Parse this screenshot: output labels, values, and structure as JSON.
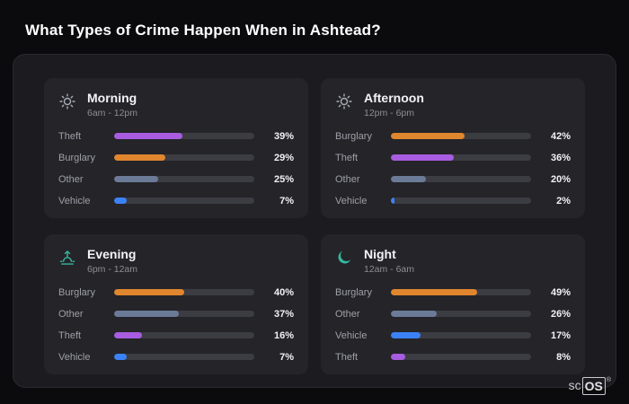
{
  "page": {
    "title": "What Types of Crime Happen When in Ashtead?"
  },
  "brand": {
    "prefix": "sc",
    "suffix": "OS",
    "reg": "®"
  },
  "colors": {
    "theft": "#a85ce0",
    "burglary": "#e0862e",
    "other": "#6b7b97",
    "vehicle": "#3b82f6",
    "icon_gray": "#a9aeb6",
    "icon_teal": "#35b8a0",
    "panel_bg": "#1c1c20",
    "card_bg": "#242429",
    "track_bg": "#3c3c43"
  },
  "chart_data": {
    "type": "bar",
    "title": "What Types of Crime Happen When in Ashtead?",
    "unit": "percent",
    "legend_position": "none",
    "grid": false,
    "groups": [
      {
        "name": "Morning",
        "time": "6am - 12pm",
        "icon": "morning-sun-icon",
        "icon_type": "sun",
        "icon_color": "#a9aeb6",
        "bars": [
          {
            "label": "Theft",
            "value": 39,
            "pct": "39%",
            "color": "#a85ce0"
          },
          {
            "label": "Burglary",
            "value": 29,
            "pct": "29%",
            "color": "#e0862e"
          },
          {
            "label": "Other",
            "value": 25,
            "pct": "25%",
            "color": "#6b7b97"
          },
          {
            "label": "Vehicle",
            "value": 7,
            "pct": "7%",
            "color": "#3b82f6"
          }
        ]
      },
      {
        "name": "Afternoon",
        "time": "12pm - 6pm",
        "icon": "afternoon-sun-icon",
        "icon_type": "sun",
        "icon_color": "#a9aeb6",
        "bars": [
          {
            "label": "Burglary",
            "value": 42,
            "pct": "42%",
            "color": "#e0862e"
          },
          {
            "label": "Theft",
            "value": 36,
            "pct": "36%",
            "color": "#a85ce0"
          },
          {
            "label": "Other",
            "value": 20,
            "pct": "20%",
            "color": "#6b7b97"
          },
          {
            "label": "Vehicle",
            "value": 2,
            "pct": "2%",
            "color": "#3b82f6"
          }
        ]
      },
      {
        "name": "Evening",
        "time": "6pm - 12am",
        "icon": "evening-sunset-icon",
        "icon_type": "sunrise",
        "icon_color": "#35b8a0",
        "bars": [
          {
            "label": "Burglary",
            "value": 40,
            "pct": "40%",
            "color": "#e0862e"
          },
          {
            "label": "Other",
            "value": 37,
            "pct": "37%",
            "color": "#6b7b97"
          },
          {
            "label": "Theft",
            "value": 16,
            "pct": "16%",
            "color": "#a85ce0"
          },
          {
            "label": "Vehicle",
            "value": 7,
            "pct": "7%",
            "color": "#3b82f6"
          }
        ]
      },
      {
        "name": "Night",
        "time": "12am - 6am",
        "icon": "night-moon-icon",
        "icon_type": "moon",
        "icon_color": "#35b8a0",
        "bars": [
          {
            "label": "Burglary",
            "value": 49,
            "pct": "49%",
            "color": "#e0862e"
          },
          {
            "label": "Other",
            "value": 26,
            "pct": "26%",
            "color": "#6b7b97"
          },
          {
            "label": "Vehicle",
            "value": 17,
            "pct": "17%",
            "color": "#3b82f6"
          },
          {
            "label": "Theft",
            "value": 8,
            "pct": "8%",
            "color": "#a85ce0"
          }
        ]
      }
    ]
  }
}
